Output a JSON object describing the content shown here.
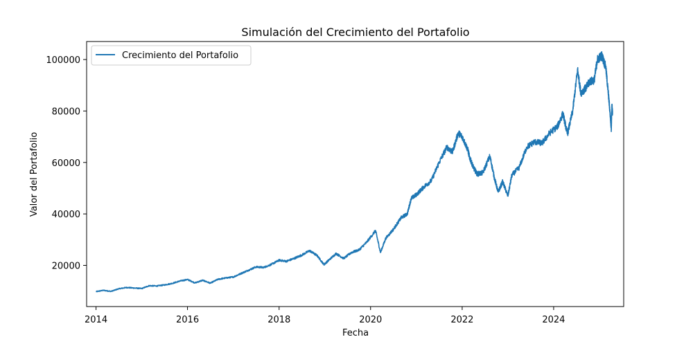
{
  "chart_data": {
    "type": "line",
    "title": "Simulación del Crecimiento del Portafolio",
    "xlabel": "Fecha",
    "ylabel": "Valor del Portafolio",
    "xlim": [
      "2013-10-18",
      "2025-07-13"
    ],
    "ylim": [
      4000,
      107000
    ],
    "x_ticks": [
      {
        "date": "2014-01-01",
        "label": "2014"
      },
      {
        "date": "2016-01-01",
        "label": "2016"
      },
      {
        "date": "2018-01-01",
        "label": "2018"
      },
      {
        "date": "2020-01-01",
        "label": "2020"
      },
      {
        "date": "2022-01-01",
        "label": "2022"
      },
      {
        "date": "2024-01-01",
        "label": "2024"
      }
    ],
    "y_ticks": [
      {
        "value": 20000,
        "label": "20000"
      },
      {
        "value": 40000,
        "label": "40000"
      },
      {
        "value": 60000,
        "label": "60000"
      },
      {
        "value": 80000,
        "label": "80000"
      },
      {
        "value": 100000,
        "label": "100000"
      }
    ],
    "grid": false,
    "legend_position": "top-left",
    "series": [
      {
        "name": "Crecimiento del Portafolio",
        "color": "#1f77b4",
        "points": [
          [
            "2014-01-01",
            9800
          ],
          [
            "2014-03-01",
            10300
          ],
          [
            "2014-05-01",
            9900
          ],
          [
            "2014-07-01",
            10900
          ],
          [
            "2014-09-01",
            11400
          ],
          [
            "2014-11-01",
            11200
          ],
          [
            "2015-01-01",
            11000
          ],
          [
            "2015-03-01",
            12100
          ],
          [
            "2015-05-01",
            12000
          ],
          [
            "2015-07-01",
            12400
          ],
          [
            "2015-09-01",
            13000
          ],
          [
            "2015-11-01",
            13900
          ],
          [
            "2016-01-01",
            14500
          ],
          [
            "2016-03-01",
            13200
          ],
          [
            "2016-05-01",
            14200
          ],
          [
            "2016-07-01",
            13100
          ],
          [
            "2016-09-01",
            14600
          ],
          [
            "2016-11-01",
            15100
          ],
          [
            "2017-01-01",
            15500
          ],
          [
            "2017-03-01",
            16800
          ],
          [
            "2017-05-01",
            18100
          ],
          [
            "2017-07-01",
            19400
          ],
          [
            "2017-09-01",
            19200
          ],
          [
            "2017-11-01",
            20400
          ],
          [
            "2018-01-01",
            22000
          ],
          [
            "2018-03-01",
            21600
          ],
          [
            "2018-05-01",
            22700
          ],
          [
            "2018-07-01",
            24000
          ],
          [
            "2018-09-01",
            25700
          ],
          [
            "2018-11-01",
            23800
          ],
          [
            "2018-12-25",
            20300
          ],
          [
            "2019-02-01",
            22000
          ],
          [
            "2019-04-01",
            24600
          ],
          [
            "2019-06-01",
            22700
          ],
          [
            "2019-08-01",
            25000
          ],
          [
            "2019-10-01",
            26000
          ],
          [
            "2019-12-01",
            29000
          ],
          [
            "2020-02-10",
            33500
          ],
          [
            "2020-03-20",
            25000
          ],
          [
            "2020-05-01",
            30500
          ],
          [
            "2020-07-01",
            34000
          ],
          [
            "2020-09-01",
            38500
          ],
          [
            "2020-10-20",
            40000
          ],
          [
            "2020-11-20",
            46000
          ],
          [
            "2021-01-01",
            47500
          ],
          [
            "2021-03-01",
            50500
          ],
          [
            "2021-05-01",
            53000
          ],
          [
            "2021-07-01",
            60000
          ],
          [
            "2021-09-01",
            66000
          ],
          [
            "2021-10-15",
            64000
          ],
          [
            "2021-12-01",
            71500
          ],
          [
            "2022-01-01",
            70000
          ],
          [
            "2022-02-15",
            65000
          ],
          [
            "2022-03-01",
            62000
          ],
          [
            "2022-04-01",
            58000
          ],
          [
            "2022-05-01",
            55500
          ],
          [
            "2022-06-15",
            56000
          ],
          [
            "2022-08-10",
            62500
          ],
          [
            "2022-09-15",
            54000
          ],
          [
            "2022-10-15",
            48500
          ],
          [
            "2022-11-20",
            52500
          ],
          [
            "2023-01-01",
            47000
          ],
          [
            "2023-02-01",
            55000
          ],
          [
            "2023-04-01",
            58000
          ],
          [
            "2023-06-01",
            66000
          ],
          [
            "2023-08-01",
            68000
          ],
          [
            "2023-10-01",
            67500
          ],
          [
            "2023-12-01",
            71500
          ],
          [
            "2024-02-01",
            74000
          ],
          [
            "2024-03-15",
            79000
          ],
          [
            "2024-04-20",
            71000
          ],
          [
            "2024-06-01",
            80000
          ],
          [
            "2024-07-10",
            96000
          ],
          [
            "2024-08-05",
            87000
          ],
          [
            "2024-09-15",
            89000
          ],
          [
            "2024-10-15",
            91500
          ],
          [
            "2024-11-20",
            92000
          ],
          [
            "2024-12-15",
            100000
          ],
          [
            "2025-01-20",
            101500
          ],
          [
            "2025-02-20",
            97000
          ],
          [
            "2025-03-10",
            88000
          ],
          [
            "2025-03-25",
            80000
          ],
          [
            "2025-04-05",
            73000
          ],
          [
            "2025-04-10",
            82000
          ],
          [
            "2025-04-15",
            79000
          ]
        ]
      }
    ]
  }
}
